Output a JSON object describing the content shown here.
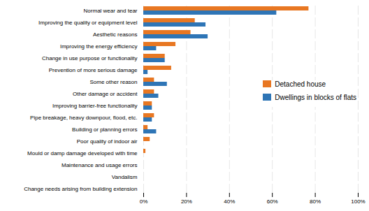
{
  "chart_data": {
    "type": "bar",
    "orientation": "horizontal",
    "categories": [
      "Change needs arising from building extension",
      "Vandalism",
      "Maintenance and usage errors",
      "Mould or damp damage developed with time",
      "Poor quality of indoor air",
      "Building or planning errors",
      "Pipe breakage, heavy downpour, flood, etc.",
      "Improving barrier-free functionality",
      "Other damage or accident",
      "Some other reason",
      "Prevention of more serious damage",
      "Change in use purpose or functionality",
      "Improving the energy efficiency",
      "Aesthetic reasons",
      "Improving the quality or equipment level",
      "Normal wear and tear"
    ],
    "series": [
      {
        "name": "Detached house",
        "color": "#E87722",
        "values": [
          0,
          0,
          0,
          1,
          3,
          2,
          5,
          4,
          5,
          5,
          13,
          10,
          15,
          22,
          24,
          77
        ]
      },
      {
        "name": "Dwellings in blocks of flats",
        "color": "#2E75B6",
        "values": [
          0,
          0,
          0,
          0,
          0,
          6,
          4,
          4,
          7,
          11,
          2,
          10,
          6,
          30,
          29,
          62
        ]
      }
    ],
    "xlim": [
      0,
      100
    ],
    "xticks": [
      {
        "value": 0,
        "label": "0%"
      },
      {
        "value": 20,
        "label": "20%"
      },
      {
        "value": 40,
        "label": "40%"
      },
      {
        "value": 60,
        "label": "60%"
      },
      {
        "value": 80,
        "label": "80%"
      },
      {
        "value": 100,
        "label": "100%"
      }
    ],
    "grid": true,
    "legend": "right"
  }
}
